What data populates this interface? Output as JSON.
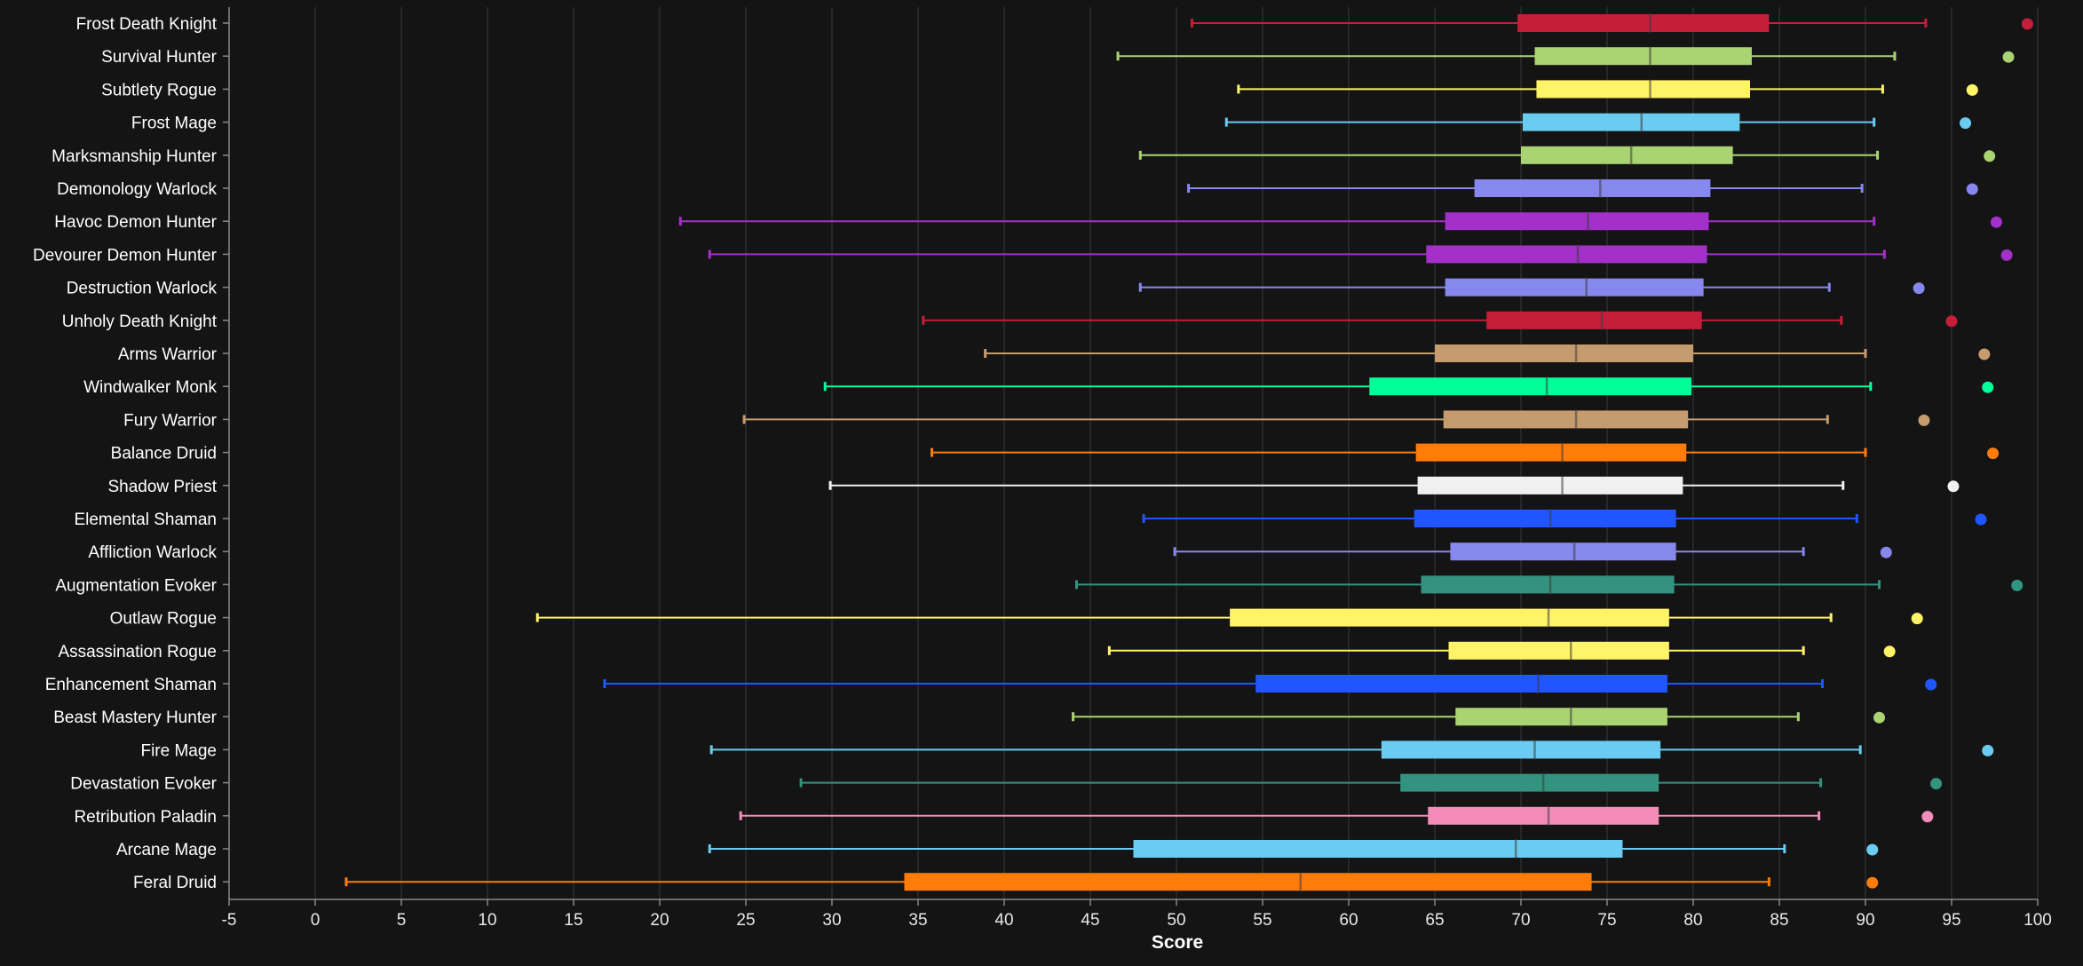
{
  "chart_data": {
    "type": "box",
    "xlabel": "Score",
    "xlim": [
      -5,
      100
    ],
    "xticks": [
      -5,
      0,
      5,
      10,
      15,
      20,
      25,
      30,
      35,
      40,
      45,
      50,
      55,
      60,
      65,
      70,
      75,
      80,
      85,
      90,
      95,
      100
    ],
    "grid": "vertical",
    "legend": "none",
    "series": [
      {
        "name": "Frost Death Knight",
        "color": "#c41e3a",
        "min": 50.9,
        "q1": 69.8,
        "median": 77.5,
        "q3": 84.4,
        "max": 93.5,
        "outlier": 99.4
      },
      {
        "name": "Survival Hunter",
        "color": "#aad372",
        "min": 46.6,
        "q1": 70.8,
        "median": 77.5,
        "q3": 83.4,
        "max": 91.7,
        "outlier": 98.3
      },
      {
        "name": "Subtlety Rogue",
        "color": "#fff468",
        "min": 53.6,
        "q1": 70.9,
        "median": 77.5,
        "q3": 83.3,
        "max": 91.0,
        "outlier": 96.2
      },
      {
        "name": "Frost Mage",
        "color": "#69ccf0",
        "min": 52.9,
        "q1": 70.1,
        "median": 77.0,
        "q3": 82.7,
        "max": 90.5,
        "outlier": 95.8
      },
      {
        "name": "Marksmanship Hunter",
        "color": "#aad372",
        "min": 47.9,
        "q1": 70.0,
        "median": 76.4,
        "q3": 82.3,
        "max": 90.7,
        "outlier": 97.2
      },
      {
        "name": "Demonology Warlock",
        "color": "#8788ee",
        "min": 50.7,
        "q1": 67.3,
        "median": 74.6,
        "q3": 81.0,
        "max": 89.8,
        "outlier": 96.2
      },
      {
        "name": "Havoc Demon Hunter",
        "color": "#a330c9",
        "min": 21.2,
        "q1": 65.6,
        "median": 73.9,
        "q3": 80.9,
        "max": 90.5,
        "outlier": 97.6
      },
      {
        "name": "Devourer Demon Hunter",
        "color": "#a330c9",
        "min": 22.9,
        "q1": 64.5,
        "median": 73.3,
        "q3": 80.8,
        "max": 91.1,
        "outlier": 98.2
      },
      {
        "name": "Destruction Warlock",
        "color": "#8788ee",
        "min": 47.9,
        "q1": 65.6,
        "median": 73.8,
        "q3": 80.6,
        "max": 87.9,
        "outlier": 93.1
      },
      {
        "name": "Unholy Death Knight",
        "color": "#c41e3a",
        "min": 35.3,
        "q1": 68.0,
        "median": 74.7,
        "q3": 80.5,
        "max": 88.6,
        "outlier": 95.0
      },
      {
        "name": "Arms Warrior",
        "color": "#c69b6d",
        "min": 38.9,
        "q1": 65.0,
        "median": 73.2,
        "q3": 80.0,
        "max": 90.0,
        "outlier": 96.9
      },
      {
        "name": "Windwalker Monk",
        "color": "#00ff98",
        "min": 29.6,
        "q1": 61.2,
        "median": 71.5,
        "q3": 79.9,
        "max": 90.3,
        "outlier": 97.1
      },
      {
        "name": "Fury Warrior",
        "color": "#c69b6d",
        "min": 24.9,
        "q1": 65.5,
        "median": 73.2,
        "q3": 79.7,
        "max": 87.8,
        "outlier": 93.4
      },
      {
        "name": "Balance Druid",
        "color": "#ff7c0a",
        "min": 35.8,
        "q1": 63.9,
        "median": 72.4,
        "q3": 79.6,
        "max": 90.0,
        "outlier": 97.4
      },
      {
        "name": "Shadow Priest",
        "color": "#f0f0f0",
        "min": 29.9,
        "q1": 64.0,
        "median": 72.4,
        "q3": 79.4,
        "max": 88.7,
        "outlier": 95.1
      },
      {
        "name": "Elemental Shaman",
        "color": "#1f56ff",
        "min": 48.1,
        "q1": 63.8,
        "median": 71.7,
        "q3": 79.0,
        "max": 89.5,
        "outlier": 96.7
      },
      {
        "name": "Affliction Warlock",
        "color": "#8788ee",
        "min": 49.9,
        "q1": 65.9,
        "median": 73.1,
        "q3": 79.0,
        "max": 86.4,
        "outlier": 91.2
      },
      {
        "name": "Augmentation Evoker",
        "color": "#33937f",
        "min": 44.2,
        "q1": 64.2,
        "median": 71.7,
        "q3": 78.9,
        "max": 90.8,
        "outlier": 98.8
      },
      {
        "name": "Outlaw Rogue",
        "color": "#fff468",
        "min": 12.9,
        "q1": 53.1,
        "median": 71.6,
        "q3": 78.6,
        "max": 88.0,
        "outlier": 93.0
      },
      {
        "name": "Assassination Rogue",
        "color": "#fff468",
        "min": 46.1,
        "q1": 65.8,
        "median": 72.9,
        "q3": 78.6,
        "max": 86.4,
        "outlier": 91.4
      },
      {
        "name": "Enhancement Shaman",
        "color": "#1f56ff",
        "min": 16.8,
        "q1": 54.6,
        "median": 71.0,
        "q3": 78.5,
        "max": 87.5,
        "outlier": 93.8
      },
      {
        "name": "Beast Mastery Hunter",
        "color": "#aad372",
        "min": 44.0,
        "q1": 66.2,
        "median": 72.9,
        "q3": 78.5,
        "max": 86.1,
        "outlier": 90.8
      },
      {
        "name": "Fire Mage",
        "color": "#69ccf0",
        "min": 23.0,
        "q1": 61.9,
        "median": 70.8,
        "q3": 78.1,
        "max": 89.7,
        "outlier": 97.1
      },
      {
        "name": "Devastation Evoker",
        "color": "#33937f",
        "min": 28.2,
        "q1": 63.0,
        "median": 71.3,
        "q3": 78.0,
        "max": 87.4,
        "outlier": 94.1
      },
      {
        "name": "Retribution Paladin",
        "color": "#f48cba",
        "min": 24.7,
        "q1": 64.6,
        "median": 71.6,
        "q3": 78.0,
        "max": 87.3,
        "outlier": 93.6
      },
      {
        "name": "Arcane Mage",
        "color": "#69ccf0",
        "min": 22.9,
        "q1": 47.5,
        "median": 69.7,
        "q3": 75.9,
        "max": 85.3,
        "outlier": 90.4
      },
      {
        "name": "Feral Druid",
        "color": "#ff7c0a",
        "min": 1.8,
        "q1": 34.2,
        "median": 57.2,
        "q3": 74.1,
        "max": 84.4,
        "outlier": 90.4
      }
    ]
  }
}
